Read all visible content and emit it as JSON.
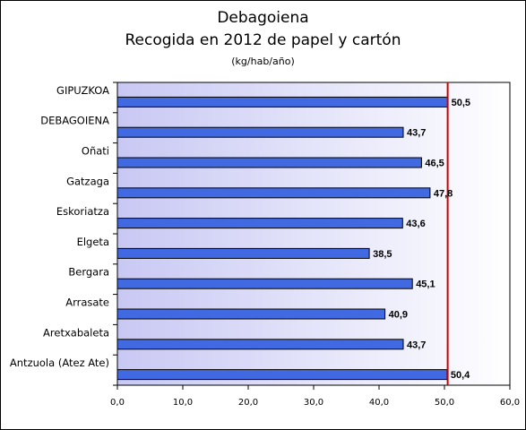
{
  "chart_data": {
    "type": "bar",
    "orientation": "horizontal",
    "title": "Debagoiena",
    "subtitle": "Recogida en 2012 de papel y cartón",
    "unit": "(kg/hab/año)",
    "categories": [
      "GIPUZKOA",
      "DEBAGOIENA",
      "Oñati",
      "Gatzaga",
      "Eskoriatza",
      "Elgeta",
      "Bergara",
      "Arrasate",
      "Aretxabaleta",
      "Antzuola (Atez Ate)"
    ],
    "values": [
      50.5,
      43.7,
      46.5,
      47.8,
      43.6,
      38.5,
      45.1,
      40.9,
      43.7,
      50.4
    ],
    "value_labels": [
      "50,5",
      "43,7",
      "46,5",
      "47,8",
      "43,6",
      "38,5",
      "45,1",
      "40,9",
      "43,7",
      "50,4"
    ],
    "x_ticks": [
      "0,0",
      "10,0",
      "20,0",
      "30,0",
      "40,0",
      "50,0",
      "60,0"
    ],
    "xlim": [
      0,
      60
    ],
    "reference_line": 50.5,
    "bar_color": "#4169e1",
    "reference_line_color": "#cc0000",
    "plot_background_gradient": [
      "#c8c8f4",
      "#ffffff"
    ],
    "grid": false,
    "legend": false
  }
}
